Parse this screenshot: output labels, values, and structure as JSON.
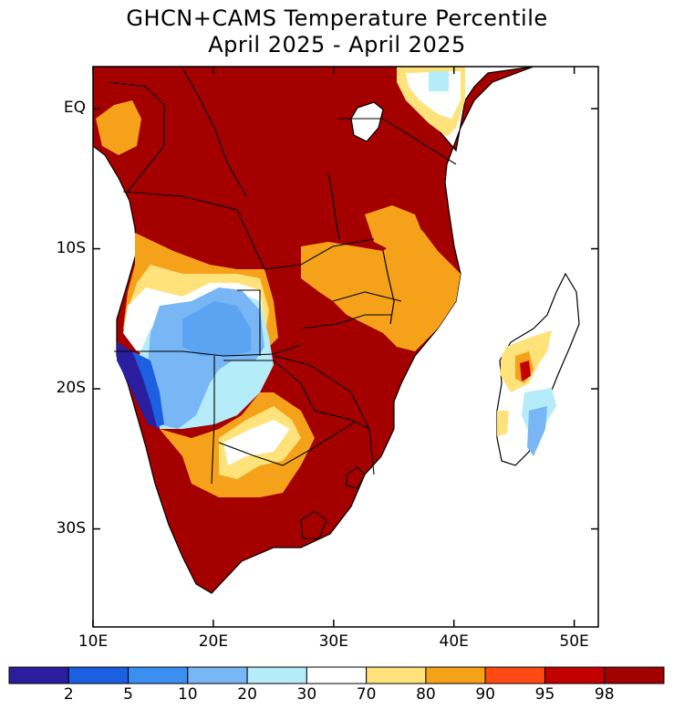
{
  "title_line1": "GHCN+CAMS Temperature Percentile",
  "title_line2": "April 2025 - April 2025",
  "lat_labels": [
    {
      "text": "EQ",
      "lat": 0
    },
    {
      "text": "10S",
      "lat": -10
    },
    {
      "text": "20S",
      "lat": -20
    },
    {
      "text": "30S",
      "lat": -30
    }
  ],
  "lon_labels": [
    {
      "text": "10E",
      "lon": 10
    },
    {
      "text": "20E",
      "lon": 20
    },
    {
      "text": "30E",
      "lon": 30
    },
    {
      "text": "40E",
      "lon": 40
    },
    {
      "text": "50E",
      "lon": 50
    }
  ],
  "extent": {
    "lon_min": 10,
    "lon_max": 52,
    "lat_min": -37,
    "lat_max": 3
  },
  "colorbar": {
    "colors": [
      "#2a1e9e",
      "#1c5fe0",
      "#3a8ff0",
      "#78b6f5",
      "#b4ecfa",
      "#ffffff",
      "#ffe27a",
      "#f5a21a",
      "#ff4a14",
      "#c20000",
      "#a00000"
    ],
    "labels": [
      "2",
      "5",
      "10",
      "20",
      "30",
      "70",
      "80",
      "90",
      "95",
      "98"
    ]
  },
  "legend_colors": {
    "very_warm": "#a50000",
    "warm": "#f5a21a",
    "mild_warm": "#ffe27a",
    "neutral": "#ffffff",
    "cool": "#b4ecfa",
    "cooler": "#78b6f5",
    "coldest": "#2a1e9e"
  }
}
